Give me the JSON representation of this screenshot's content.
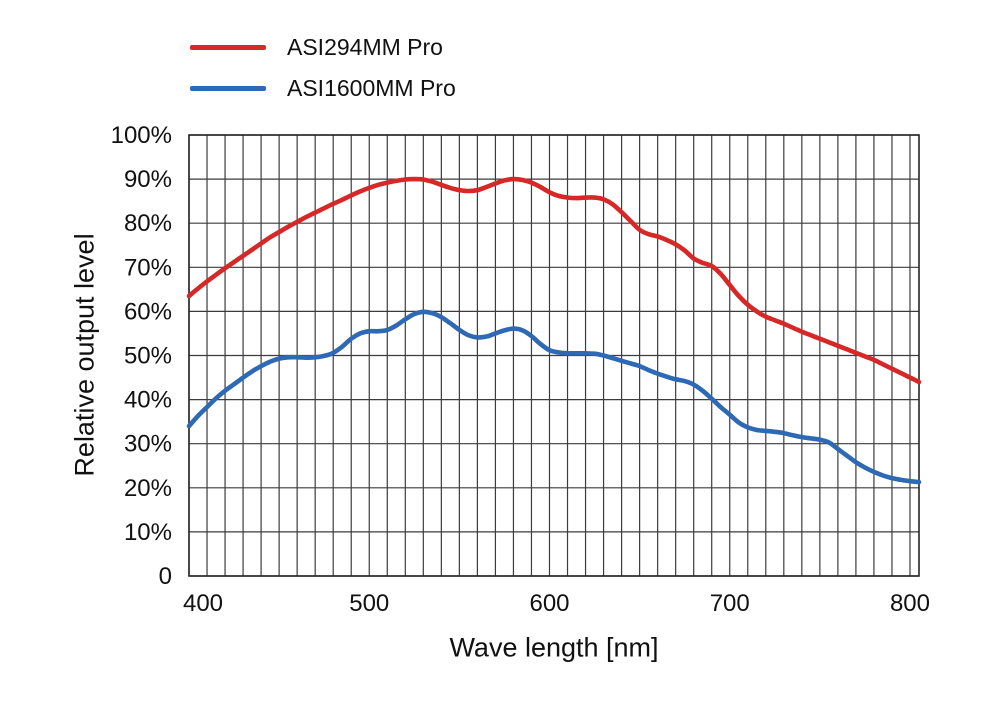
{
  "legend": {
    "items": [
      {
        "label": "ASI294MM Pro",
        "color": "#d72828"
      },
      {
        "label": "ASI1600MM Pro",
        "color": "#2d69b4"
      }
    ]
  },
  "axes": {
    "y_title": "Relative output level",
    "x_title": "Wave length [nm]"
  },
  "chart_data": {
    "type": "line",
    "title": "",
    "xlabel": "Wave length [nm]",
    "ylabel": "Relative output level",
    "xlim": [
      400,
      805
    ],
    "ylim": [
      0,
      100
    ],
    "x_start": 400,
    "x_step": 5,
    "grid": {
      "on": true,
      "x_interval_nm": 10,
      "y_interval_pct": 10,
      "color": "#3c3c3c"
    },
    "legend_position": "top-left",
    "x_ticks": [
      {
        "value": 400,
        "label": "400"
      },
      {
        "value": 500,
        "label": "500"
      },
      {
        "value": 600,
        "label": "600"
      },
      {
        "value": 700,
        "label": "700"
      },
      {
        "value": 800,
        "label": "800"
      }
    ],
    "y_ticks": [
      {
        "value": 100,
        "label": "100%"
      },
      {
        "value": 90,
        "label": "90%"
      },
      {
        "value": 80,
        "label": "80%"
      },
      {
        "value": 70,
        "label": "70%"
      },
      {
        "value": 60,
        "label": "60%"
      },
      {
        "value": 50,
        "label": "50%"
      },
      {
        "value": 40,
        "label": "40%"
      },
      {
        "value": 30,
        "label": "30%"
      },
      {
        "value": 20,
        "label": "20%"
      },
      {
        "value": 10,
        "label": "10%"
      },
      {
        "value": 0,
        "label": "0"
      }
    ],
    "series": [
      {
        "name": "ASI294MM Pro",
        "color": "#d72828",
        "values": [
          63.5,
          65.2,
          66.8,
          68.3,
          69.8,
          71.2,
          72.6,
          74.0,
          75.4,
          76.8,
          78.0,
          79.2,
          80.3,
          81.4,
          82.4,
          83.4,
          84.4,
          85.3,
          86.3,
          87.2,
          88.0,
          88.7,
          89.2,
          89.6,
          89.9,
          90.0,
          89.9,
          89.4,
          88.7,
          88.0,
          87.5,
          87.3,
          87.5,
          88.2,
          89.0,
          89.7,
          90.0,
          89.8,
          89.2,
          88.2,
          87.0,
          86.2,
          85.8,
          85.7,
          85.8,
          85.8,
          85.4,
          84.3,
          82.5,
          80.5,
          78.5,
          77.5,
          77.0,
          76.2,
          75.2,
          73.8,
          72.0,
          71.0,
          70.3,
          68.5,
          66.0,
          63.5,
          61.5,
          60.0,
          58.8,
          58.0,
          57.2,
          56.3,
          55.4,
          54.6,
          53.8,
          53.0,
          52.2,
          51.4,
          50.6,
          49.8,
          49.0,
          48.0,
          47.0,
          46.0,
          45.0,
          44.0
        ]
      },
      {
        "name": "ASI1600MM Pro",
        "color": "#2d69b4",
        "values": [
          34.0,
          36.3,
          38.3,
          40.3,
          42.0,
          43.5,
          45.0,
          46.4,
          47.6,
          48.6,
          49.3,
          49.6,
          49.6,
          49.5,
          49.6,
          49.9,
          50.6,
          52.0,
          53.8,
          55.0,
          55.5,
          55.5,
          55.8,
          56.8,
          58.2,
          59.4,
          59.9,
          59.6,
          58.7,
          57.3,
          55.8,
          54.6,
          54.1,
          54.3,
          55.0,
          55.7,
          56.1,
          55.7,
          54.4,
          52.6,
          51.2,
          50.7,
          50.5,
          50.5,
          50.5,
          50.4,
          50.0,
          49.4,
          48.8,
          48.2,
          47.6,
          46.7,
          45.9,
          45.2,
          44.6,
          44.2,
          43.4,
          42.0,
          40.2,
          38.3,
          36.6,
          34.8,
          33.7,
          33.1,
          32.9,
          32.7,
          32.4,
          31.9,
          31.5,
          31.2,
          30.9,
          30.3,
          28.8,
          27.3,
          25.8,
          24.6,
          23.6,
          22.8,
          22.2,
          21.8,
          21.5,
          21.3
        ]
      }
    ]
  }
}
